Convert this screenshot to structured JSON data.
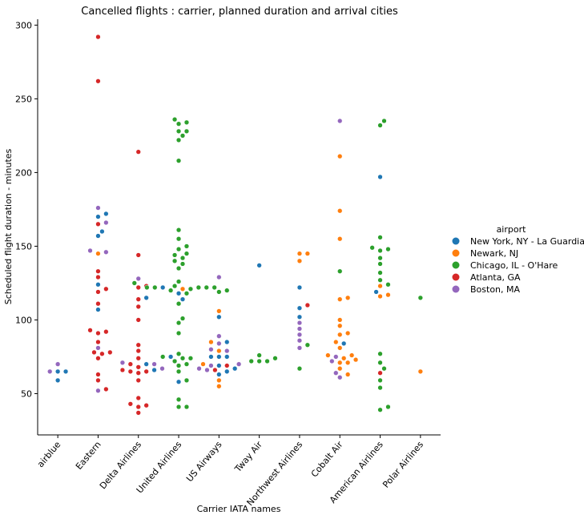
{
  "chart_data": {
    "type": "scatter",
    "title": "Cancelled flights : carrier, planned duration and arrival cities",
    "xlabel": "Carrier IATA names",
    "ylabel": "Scheduled flight duration - minutes",
    "ylim": [
      22,
      304
    ],
    "yticks": [
      50,
      100,
      150,
      200,
      250,
      300
    ],
    "grid": false,
    "legend": {
      "title": "airport",
      "placement": "right"
    },
    "categories": [
      "airblue",
      "Eastern",
      "Delta Airlines",
      "United Airlines",
      "US Airways",
      "Tway Air",
      "Northwest Airlines",
      "Cobalt Air",
      "American Airlines",
      "Polar Airlines"
    ],
    "series": [
      {
        "name": "New York, NY - La Guardia",
        "color": "#1f77b4",
        "points": [
          [
            "airblue",
            65
          ],
          [
            "airblue",
            65
          ],
          [
            "airblue",
            59
          ],
          [
            "Eastern",
            172
          ],
          [
            "Eastern",
            170
          ],
          [
            "Eastern",
            160
          ],
          [
            "Eastern",
            157
          ],
          [
            "Eastern",
            124
          ],
          [
            "Eastern",
            107
          ],
          [
            "Delta Airlines",
            115
          ],
          [
            "Delta Airlines",
            70
          ],
          [
            "Delta Airlines",
            66
          ],
          [
            "United Airlines",
            122
          ],
          [
            "United Airlines",
            118
          ],
          [
            "United Airlines",
            114
          ],
          [
            "United Airlines",
            75
          ],
          [
            "United Airlines",
            58
          ],
          [
            "US Airways",
            102
          ],
          [
            "US Airways",
            85
          ],
          [
            "US Airways",
            75
          ],
          [
            "US Airways",
            75
          ],
          [
            "US Airways",
            75
          ],
          [
            "US Airways",
            69
          ],
          [
            "US Airways",
            67
          ],
          [
            "US Airways",
            65
          ],
          [
            "US Airways",
            63
          ],
          [
            "Tway Air",
            137
          ],
          [
            "Northwest Airlines",
            122
          ],
          [
            "Northwest Airlines",
            108
          ],
          [
            "Northwest Airlines",
            102
          ],
          [
            "Cobalt Air",
            84
          ],
          [
            "American Airlines",
            197
          ],
          [
            "American Airlines",
            119
          ]
        ]
      },
      {
        "name": "Newark, NJ",
        "color": "#ff7f0e",
        "points": [
          [
            "Eastern",
            145
          ],
          [
            "United Airlines",
            121
          ],
          [
            "US Airways",
            106
          ],
          [
            "US Airways",
            85
          ],
          [
            "US Airways",
            79
          ],
          [
            "US Airways",
            70
          ],
          [
            "US Airways",
            59
          ],
          [
            "US Airways",
            55
          ],
          [
            "Northwest Airlines",
            145
          ],
          [
            "Northwest Airlines",
            145
          ],
          [
            "Northwest Airlines",
            140
          ],
          [
            "Cobalt Air",
            211
          ],
          [
            "Cobalt Air",
            174
          ],
          [
            "Cobalt Air",
            155
          ],
          [
            "Cobalt Air",
            115
          ],
          [
            "Cobalt Air",
            114
          ],
          [
            "Cobalt Air",
            100
          ],
          [
            "Cobalt Air",
            96
          ],
          [
            "Cobalt Air",
            91
          ],
          [
            "Cobalt Air",
            90
          ],
          [
            "Cobalt Air",
            85
          ],
          [
            "Cobalt Air",
            81
          ],
          [
            "Cobalt Air",
            76
          ],
          [
            "Cobalt Air",
            76
          ],
          [
            "Cobalt Air",
            74
          ],
          [
            "Cobalt Air",
            73
          ],
          [
            "Cobalt Air",
            71
          ],
          [
            "Cobalt Air",
            71
          ],
          [
            "Cobalt Air",
            67
          ],
          [
            "Cobalt Air",
            63
          ],
          [
            "American Airlines",
            123
          ],
          [
            "American Airlines",
            117
          ],
          [
            "American Airlines",
            116
          ],
          [
            "Polar Airlines",
            65
          ]
        ]
      },
      {
        "name": "Chicago, IL - O'Hare",
        "color": "#2ca02c",
        "points": [
          [
            "Delta Airlines",
            125
          ],
          [
            "United Airlines",
            236
          ],
          [
            "United Airlines",
            234
          ],
          [
            "United Airlines",
            233
          ],
          [
            "United Airlines",
            228
          ],
          [
            "United Airlines",
            228
          ],
          [
            "United Airlines",
            225
          ],
          [
            "United Airlines",
            222
          ],
          [
            "United Airlines",
            208
          ],
          [
            "United Airlines",
            161
          ],
          [
            "United Airlines",
            155
          ],
          [
            "United Airlines",
            150
          ],
          [
            "United Airlines",
            148
          ],
          [
            "United Airlines",
            145
          ],
          [
            "United Airlines",
            144
          ],
          [
            "United Airlines",
            142
          ],
          [
            "United Airlines",
            140
          ],
          [
            "United Airlines",
            138
          ],
          [
            "United Airlines",
            135
          ],
          [
            "United Airlines",
            126
          ],
          [
            "United Airlines",
            123
          ],
          [
            "United Airlines",
            122
          ],
          [
            "United Airlines",
            122
          ],
          [
            "United Airlines",
            122
          ],
          [
            "United Airlines",
            122
          ],
          [
            "United Airlines",
            122
          ],
          [
            "United Airlines",
            121
          ],
          [
            "United Airlines",
            120
          ],
          [
            "United Airlines",
            118
          ],
          [
            "United Airlines",
            111
          ],
          [
            "United Airlines",
            101
          ],
          [
            "United Airlines",
            98
          ],
          [
            "United Airlines",
            91
          ],
          [
            "United Airlines",
            77
          ],
          [
            "United Airlines",
            75
          ],
          [
            "United Airlines",
            74
          ],
          [
            "United Airlines",
            74
          ],
          [
            "United Airlines",
            72
          ],
          [
            "United Airlines",
            70
          ],
          [
            "United Airlines",
            69
          ],
          [
            "United Airlines",
            65
          ],
          [
            "United Airlines",
            59
          ],
          [
            "United Airlines",
            46
          ],
          [
            "United Airlines",
            41
          ],
          [
            "United Airlines",
            41
          ],
          [
            "US Airways",
            120
          ],
          [
            "US Airways",
            119
          ],
          [
            "Tway Air",
            76
          ],
          [
            "Tway Air",
            74
          ],
          [
            "Tway Air",
            72
          ],
          [
            "Tway Air",
            72
          ],
          [
            "Tway Air",
            72
          ],
          [
            "Northwest Airlines",
            83
          ],
          [
            "Northwest Airlines",
            67
          ],
          [
            "Cobalt Air",
            133
          ],
          [
            "American Airlines",
            235
          ],
          [
            "American Airlines",
            232
          ],
          [
            "American Airlines",
            156
          ],
          [
            "American Airlines",
            149
          ],
          [
            "American Airlines",
            148
          ],
          [
            "American Airlines",
            147
          ],
          [
            "American Airlines",
            142
          ],
          [
            "American Airlines",
            138
          ],
          [
            "American Airlines",
            132
          ],
          [
            "American Airlines",
            127
          ],
          [
            "American Airlines",
            124
          ],
          [
            "American Airlines",
            77
          ],
          [
            "American Airlines",
            71
          ],
          [
            "American Airlines",
            67
          ],
          [
            "American Airlines",
            59
          ],
          [
            "American Airlines",
            54
          ],
          [
            "American Airlines",
            41
          ],
          [
            "American Airlines",
            39
          ],
          [
            "Polar Airlines",
            115
          ]
        ]
      },
      {
        "name": "Atlanta, GA",
        "color": "#d62728",
        "points": [
          [
            "Eastern",
            292
          ],
          [
            "Eastern",
            262
          ],
          [
            "Eastern",
            165
          ],
          [
            "Eastern",
            133
          ],
          [
            "Eastern",
            129
          ],
          [
            "Eastern",
            121
          ],
          [
            "Eastern",
            119
          ],
          [
            "Eastern",
            111
          ],
          [
            "Eastern",
            93
          ],
          [
            "Eastern",
            92
          ],
          [
            "Eastern",
            91
          ],
          [
            "Eastern",
            85
          ],
          [
            "Eastern",
            78
          ],
          [
            "Eastern",
            78
          ],
          [
            "Eastern",
            77
          ],
          [
            "Eastern",
            74
          ],
          [
            "Eastern",
            63
          ],
          [
            "Eastern",
            59
          ],
          [
            "Eastern",
            53
          ],
          [
            "Delta Airlines",
            214
          ],
          [
            "Delta Airlines",
            144
          ],
          [
            "Delta Airlines",
            123
          ],
          [
            "Delta Airlines",
            122
          ],
          [
            "Delta Airlines",
            114
          ],
          [
            "Delta Airlines",
            109
          ],
          [
            "Delta Airlines",
            100
          ],
          [
            "Delta Airlines",
            83
          ],
          [
            "Delta Airlines",
            79
          ],
          [
            "Delta Airlines",
            74
          ],
          [
            "Delta Airlines",
            70
          ],
          [
            "Delta Airlines",
            68
          ],
          [
            "Delta Airlines",
            66
          ],
          [
            "Delta Airlines",
            65
          ],
          [
            "Delta Airlines",
            65
          ],
          [
            "Delta Airlines",
            64
          ],
          [
            "Delta Airlines",
            59
          ],
          [
            "Delta Airlines",
            47
          ],
          [
            "Delta Airlines",
            43
          ],
          [
            "Delta Airlines",
            42
          ],
          [
            "Delta Airlines",
            41
          ],
          [
            "Delta Airlines",
            37
          ],
          [
            "US Airways",
            69
          ],
          [
            "US Airways",
            66
          ],
          [
            "Northwest Airlines",
            110
          ],
          [
            "American Airlines",
            64
          ]
        ]
      },
      {
        "name": "Boston, MA",
        "color": "#9467bd",
        "points": [
          [
            "airblue",
            70
          ],
          [
            "airblue",
            65
          ],
          [
            "Eastern",
            176
          ],
          [
            "Eastern",
            166
          ],
          [
            "Eastern",
            147
          ],
          [
            "Eastern",
            146
          ],
          [
            "Eastern",
            81
          ],
          [
            "Eastern",
            52
          ],
          [
            "Delta Airlines",
            128
          ],
          [
            "Delta Airlines",
            71
          ],
          [
            "Delta Airlines",
            70
          ],
          [
            "Delta Airlines",
            67
          ],
          [
            "US Airways",
            129
          ],
          [
            "US Airways",
            89
          ],
          [
            "US Airways",
            84
          ],
          [
            "US Airways",
            80
          ],
          [
            "US Airways",
            79
          ],
          [
            "US Airways",
            70
          ],
          [
            "US Airways",
            69
          ],
          [
            "US Airways",
            67
          ],
          [
            "US Airways",
            66
          ],
          [
            "Northwest Airlines",
            98
          ],
          [
            "Northwest Airlines",
            94
          ],
          [
            "Northwest Airlines",
            90
          ],
          [
            "Northwest Airlines",
            86
          ],
          [
            "Northwest Airlines",
            81
          ],
          [
            "Cobalt Air",
            235
          ],
          [
            "Cobalt Air",
            75
          ],
          [
            "Cobalt Air",
            72
          ],
          [
            "Cobalt Air",
            64
          ],
          [
            "Cobalt Air",
            61
          ]
        ]
      }
    ]
  }
}
